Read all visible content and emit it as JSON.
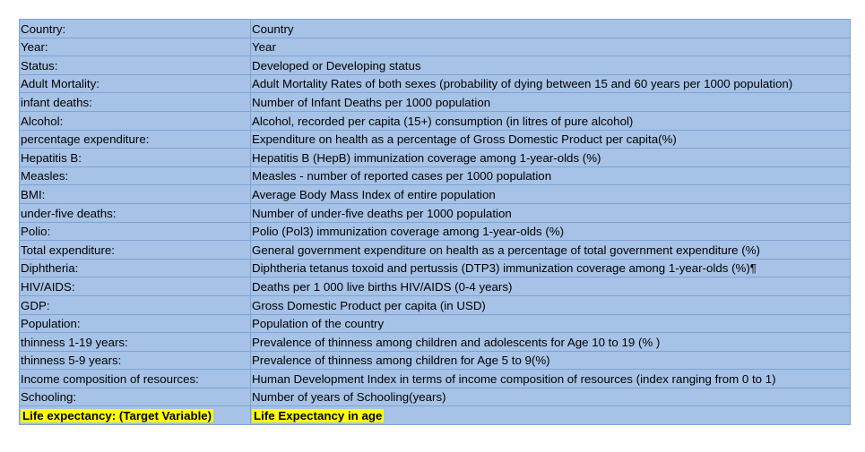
{
  "rows": [
    {
      "name": "Country:",
      "description": "Country"
    },
    {
      "name": "Year:",
      "description": " Year"
    },
    {
      "name": "Status:",
      "description": "Developed or Developing status"
    },
    {
      "name": "Adult Mortality:",
      "description": " Adult Mortality Rates of both sexes (probability of dying between 15 and 60 years per 1000 population)"
    },
    {
      "name": "infant deaths:",
      "description": "Number of Infant Deaths per 1000 population"
    },
    {
      "name": "Alcohol:",
      "description": "Alcohol, recorded per capita (15+) consumption (in litres of pure alcohol)"
    },
    {
      "name": "percentage expenditure:",
      "description": "Expenditure on health as a percentage of Gross Domestic Product per capita(%)"
    },
    {
      "name": "Hepatitis B:",
      "description": "Hepatitis B (HepB) immunization coverage among 1-year-olds (%)"
    },
    {
      "name": "Measles:",
      "description": "Measles - number of reported cases per 1000 population"
    },
    {
      "name": "BMI:",
      "description": "Average Body Mass Index of entire population"
    },
    {
      "name": "under-five deaths:",
      "description": "Number of under-five deaths per 1000 population"
    },
    {
      "name": "Polio:",
      "description": "Polio (Pol3) immunization coverage among 1-year-olds (%)"
    },
    {
      "name": "Total expenditure:",
      "description": " General government expenditure on health as a percentage of total government expenditure (%)"
    },
    {
      "name": "Diphtheria:",
      "description": "Diphtheria tetanus toxoid and pertussis (DTP3) immunization coverage among 1-year-olds (%)¶"
    },
    {
      "name": "HIV/AIDS:",
      "description": "Deaths per 1 000 live births HIV/AIDS (0-4 years)"
    },
    {
      "name": "GDP:",
      "description": "Gross Domestic Product per capita (in USD)"
    },
    {
      "name": "Population:",
      "description": "Population of the country"
    },
    {
      "name": "thinness 1-19 years:",
      "description": "Prevalence of thinness among children and adolescents for Age 10 to 19 (% )"
    },
    {
      "name": "thinness 5-9 years:",
      "description": "Prevalence of thinness among children for Age 5 to 9(%)"
    },
    {
      "name": "Income composition of resources:",
      "description": "Human Development Index in terms of income composition of resources (index ranging from 0 to 1)"
    },
    {
      "name": "Schooling:",
      "description": "Number of years of Schooling(years)"
    }
  ],
  "target_row": {
    "name": "Life expectancy: (Target Variable)",
    "description": "Life Expectancy in age"
  },
  "colors": {
    "cell_fill": "#a6c2e6",
    "cell_border": "#7fa2d4",
    "highlight": "#ffff00"
  }
}
